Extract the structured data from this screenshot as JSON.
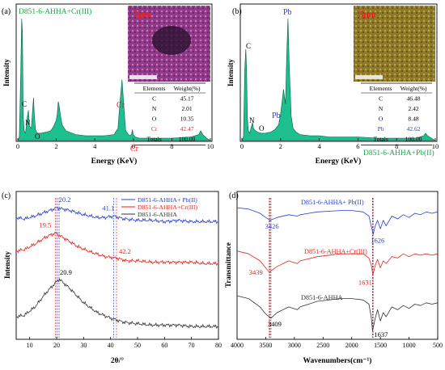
{
  "chart_data": [
    {
      "panel": "(a)",
      "type": "area",
      "title": "D851-6-AHHA+Cr(III)",
      "xlabel": "Energy (KeV)",
      "ylabel": "Intensity",
      "xlim": [
        0,
        10
      ],
      "xticks": [
        0,
        2,
        4,
        6,
        8,
        10
      ],
      "fill_color": "#1dbf8e",
      "x": [
        0.0,
        0.08,
        0.15,
        0.2,
        0.24,
        0.28,
        0.33,
        0.4,
        0.5,
        0.55,
        0.6,
        0.7,
        0.78,
        0.82,
        0.86,
        0.92,
        1.0,
        1.2,
        1.5,
        1.7,
        1.8,
        1.9,
        2.0,
        2.05,
        2.1,
        2.15,
        2.2,
        2.3,
        2.5,
        3.0,
        3.5,
        4.0,
        4.5,
        5.0,
        5.2,
        5.3,
        5.41,
        5.5,
        5.6,
        5.8,
        5.9,
        5.95,
        6.0,
        6.1,
        6.3,
        7.0,
        8.0,
        9.0,
        9.4,
        9.5,
        9.6,
        9.8,
        10.0
      ],
      "y": [
        0.0,
        0.03,
        0.55,
        1.0,
        0.9,
        0.2,
        0.08,
        0.06,
        0.2,
        0.25,
        0.12,
        0.1,
        0.28,
        0.35,
        0.2,
        0.09,
        0.06,
        0.06,
        0.07,
        0.08,
        0.1,
        0.13,
        0.17,
        0.22,
        0.32,
        0.28,
        0.22,
        0.13,
        0.08,
        0.05,
        0.04,
        0.04,
        0.04,
        0.05,
        0.1,
        0.3,
        0.5,
        0.3,
        0.08,
        0.04,
        0.05,
        0.09,
        0.05,
        0.03,
        0.02,
        0.02,
        0.02,
        0.03,
        0.05,
        0.08,
        0.05,
        0.02,
        0.0
      ],
      "ylim": [
        0,
        1.02
      ],
      "annotations": [
        "C",
        "N",
        "O",
        "Cr",
        "Cr"
      ],
      "inset_label": "5μm",
      "table": {
        "headers": [
          "Elements",
          "Weight(%)"
        ],
        "rows": [
          [
            "C",
            "45.17"
          ],
          [
            "N",
            "2.01"
          ],
          [
            "O",
            "10.35"
          ],
          [
            "Cr",
            "42.47"
          ],
          [
            "Totals",
            "100.00"
          ]
        ],
        "highlight_color": "#e8231e"
      }
    },
    {
      "panel": "(b)",
      "type": "area",
      "title": "D851-6-AHHA+Pb(II)",
      "xlabel": "Energy (KeV)",
      "ylabel": "Intensity",
      "xlim": [
        0,
        10
      ],
      "xticks": [
        0,
        2,
        4,
        6,
        8,
        10
      ],
      "fill_color": "#1dbf8e",
      "x": [
        0.0,
        0.08,
        0.15,
        0.2,
        0.24,
        0.28,
        0.33,
        0.4,
        0.5,
        0.55,
        0.6,
        0.7,
        0.8,
        1.0,
        1.2,
        1.5,
        1.7,
        1.8,
        1.9,
        2.0,
        2.1,
        2.15,
        2.25,
        2.32,
        2.38,
        2.45,
        2.55,
        2.65,
        2.8,
        3.0,
        3.5,
        4.0,
        4.5,
        5.0,
        6.0,
        7.0,
        8.0,
        9.0,
        9.4,
        9.5,
        9.6,
        9.8,
        10.0
      ],
      "y": [
        0.0,
        0.03,
        0.6,
        0.75,
        0.6,
        0.2,
        0.08,
        0.06,
        0.12,
        0.15,
        0.1,
        0.08,
        0.07,
        0.06,
        0.06,
        0.07,
        0.09,
        0.11,
        0.13,
        0.22,
        0.35,
        0.42,
        0.3,
        0.7,
        1.0,
        0.6,
        0.2,
        0.1,
        0.07,
        0.05,
        0.04,
        0.04,
        0.03,
        0.03,
        0.03,
        0.02,
        0.02,
        0.02,
        0.04,
        0.06,
        0.04,
        0.02,
        0.0
      ],
      "ylim": [
        0,
        1.02
      ],
      "annotations": [
        "C",
        "N",
        "O",
        "Pb",
        "Pb"
      ],
      "inset_label": "5μm",
      "table": {
        "headers": [
          "Elements",
          "Weight(%)"
        ],
        "rows": [
          [
            "C",
            "46.48"
          ],
          [
            "N",
            "2.42"
          ],
          [
            "O",
            "8.48"
          ],
          [
            "Pb",
            "42.62"
          ],
          [
            "Totals",
            "100.00"
          ]
        ],
        "highlight_color": "#2a3fd4"
      }
    },
    {
      "panel": "(c)",
      "type": "line",
      "xlabel": "2θ/°",
      "ylabel": "Intensity",
      "xlim": [
        5,
        80
      ],
      "xticks": [
        10,
        20,
        30,
        40,
        50,
        60,
        70,
        80
      ],
      "legend_position": "top-right",
      "series": [
        {
          "name": "D851-6-AHHA+ Pb(II)",
          "color": "#2a3fd4",
          "x": [
            5,
            8,
            12,
            16,
            20.2,
            25,
            30,
            35,
            38,
            41.1,
            45,
            50,
            55,
            60,
            65,
            70,
            75,
            80
          ],
          "y": [
            0.86,
            0.85,
            0.87,
            0.9,
            0.93,
            0.91,
            0.88,
            0.86,
            0.86,
            0.87,
            0.85,
            0.84,
            0.84,
            0.83,
            0.84,
            0.83,
            0.83,
            0.83
          ]
        },
        {
          "name": "D851-6-AHHA+Cr(III)",
          "color": "#e8231e",
          "x": [
            5,
            8,
            12,
            16,
            19.5,
            23,
            28,
            33,
            38,
            42.2,
            46,
            50,
            55,
            60,
            65,
            70,
            75,
            80
          ],
          "y": [
            0.62,
            0.63,
            0.67,
            0.72,
            0.75,
            0.71,
            0.65,
            0.61,
            0.58,
            0.57,
            0.55,
            0.55,
            0.54,
            0.54,
            0.54,
            0.54,
            0.53,
            0.53
          ]
        },
        {
          "name": "D851-6-AHHA",
          "color": "#333333",
          "x": [
            5,
            8,
            12,
            16,
            20.9,
            25,
            30,
            35,
            40,
            45,
            50,
            55,
            60,
            65,
            70,
            75,
            80
          ],
          "y": [
            0.15,
            0.16,
            0.22,
            0.32,
            0.42,
            0.35,
            0.25,
            0.18,
            0.14,
            0.11,
            0.1,
            0.09,
            0.09,
            0.09,
            0.08,
            0.08,
            0.08
          ]
        }
      ],
      "ylim": [
        0,
        1
      ],
      "peak_labels": [
        "20.2",
        "41.1",
        "19.5",
        "42.2",
        "20.9"
      ]
    },
    {
      "panel": "(d)",
      "type": "line",
      "xlabel": "Wavenumbers(cm⁻¹)",
      "ylabel": "Transmittance",
      "xlim": [
        4000,
        500
      ],
      "xticks": [
        4000,
        3500,
        3000,
        2500,
        2000,
        1500,
        1000,
        500
      ],
      "series": [
        {
          "name": "D851-6-AHHA+ Pb(II)",
          "color": "#2a3fd4",
          "x": [
            4000,
            3800,
            3600,
            3500,
            3426,
            3300,
            3100,
            2950,
            2900,
            2600,
            2200,
            2000,
            1800,
            1700,
            1660,
            1626,
            1590,
            1550,
            1500,
            1450,
            1400,
            1300,
            1200,
            1100,
            1000,
            900,
            800,
            700,
            600,
            500
          ],
          "y": [
            0.93,
            0.92,
            0.89,
            0.86,
            0.84,
            0.86,
            0.88,
            0.87,
            0.88,
            0.9,
            0.91,
            0.91,
            0.9,
            0.87,
            0.8,
            0.74,
            0.8,
            0.84,
            0.78,
            0.84,
            0.8,
            0.87,
            0.85,
            0.88,
            0.86,
            0.89,
            0.88,
            0.9,
            0.89,
            0.9
          ]
        },
        {
          "name": "D851-6-AHHA+Cr(III)",
          "color": "#e8231e",
          "x": [
            4000,
            3800,
            3600,
            3500,
            3439,
            3300,
            3100,
            2950,
            2900,
            2600,
            2200,
            2000,
            1800,
            1700,
            1660,
            1631,
            1590,
            1550,
            1500,
            1450,
            1400,
            1300,
            1200,
            1100,
            1000,
            900,
            800,
            700,
            600,
            500
          ],
          "y": [
            0.62,
            0.6,
            0.55,
            0.5,
            0.47,
            0.51,
            0.55,
            0.53,
            0.55,
            0.58,
            0.6,
            0.6,
            0.6,
            0.57,
            0.52,
            0.45,
            0.52,
            0.56,
            0.5,
            0.55,
            0.53,
            0.58,
            0.57,
            0.6,
            0.58,
            0.6,
            0.59,
            0.6,
            0.59,
            0.6
          ]
        },
        {
          "name": "D851-6-AHHA",
          "color": "#333333",
          "x": [
            4000,
            3800,
            3600,
            3500,
            3409,
            3300,
            3100,
            2950,
            2900,
            2600,
            2200,
            2000,
            1800,
            1700,
            1660,
            1637,
            1590,
            1550,
            1500,
            1450,
            1400,
            1300,
            1200,
            1100,
            1000,
            900,
            800,
            700,
            600,
            500
          ],
          "y": [
            0.3,
            0.28,
            0.22,
            0.17,
            0.14,
            0.18,
            0.22,
            0.2,
            0.22,
            0.26,
            0.28,
            0.28,
            0.27,
            0.24,
            0.15,
            0.05,
            0.14,
            0.2,
            0.12,
            0.18,
            0.15,
            0.22,
            0.2,
            0.23,
            0.21,
            0.24,
            0.23,
            0.25,
            0.24,
            0.25
          ]
        }
      ],
      "ylim": [
        0,
        1
      ],
      "peak_labels": [
        "3426",
        "1626",
        "3439",
        "1631",
        "3409",
        "1637"
      ]
    }
  ]
}
